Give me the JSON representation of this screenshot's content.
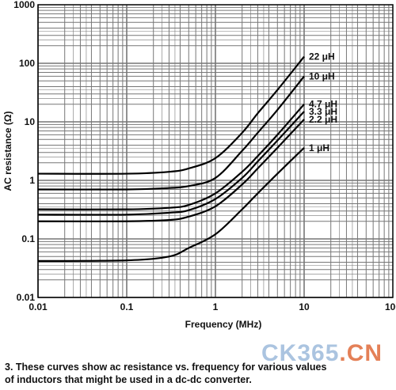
{
  "chart_data": {
    "type": "line",
    "xlabel": "Frequency (MHz)",
    "ylabel": "AC resistance (Ω)",
    "xscale": "log",
    "yscale": "log",
    "xlim": [
      0.01,
      100
    ],
    "ylim": [
      0.01,
      1000
    ],
    "xticks": [
      "0.01",
      "0.1",
      "1",
      "10",
      "100"
    ],
    "yticks": [
      "0.01",
      "0.1",
      "1",
      "10",
      "100",
      "1000"
    ],
    "grid": true,
    "series": [
      {
        "name": "22 μH",
        "x": [
          0.01,
          0.1,
          0.3,
          0.5,
          1,
          2,
          3,
          5,
          10
        ],
        "y": [
          1.3,
          1.3,
          1.4,
          1.6,
          2.4,
          6.5,
          14,
          35,
          130
        ]
      },
      {
        "name": "10 μH",
        "x": [
          0.01,
          0.1,
          0.3,
          0.5,
          1,
          2,
          3,
          5,
          10
        ],
        "y": [
          0.7,
          0.7,
          0.74,
          0.8,
          1.1,
          3.2,
          6.5,
          16,
          60
        ]
      },
      {
        "name": "4.7 μH",
        "x": [
          0.01,
          0.1,
          0.3,
          0.5,
          1,
          2,
          3,
          5,
          10
        ],
        "y": [
          0.32,
          0.32,
          0.34,
          0.38,
          0.6,
          1.4,
          2.6,
          6,
          20
        ]
      },
      {
        "name": "3.3 μH",
        "x": [
          0.01,
          0.1,
          0.3,
          0.5,
          1,
          2,
          3,
          5,
          10
        ],
        "y": [
          0.26,
          0.26,
          0.28,
          0.31,
          0.48,
          1.1,
          2.1,
          4.8,
          15
        ]
      },
      {
        "name": "2.2 μH",
        "x": [
          0.01,
          0.1,
          0.3,
          0.5,
          1,
          2,
          3,
          5,
          10
        ],
        "y": [
          0.2,
          0.2,
          0.21,
          0.24,
          0.36,
          0.85,
          1.6,
          3.6,
          11
        ]
      },
      {
        "name": "1 μH",
        "x": [
          0.01,
          0.1,
          0.3,
          0.5,
          1,
          2,
          3,
          5,
          10
        ],
        "y": [
          0.042,
          0.043,
          0.05,
          0.07,
          0.12,
          0.32,
          0.6,
          1.3,
          3.6
        ]
      }
    ]
  },
  "caption": {
    "line1": "3. These curves show ac resistance vs. frequency for various values",
    "line2": "of inductors that might be used in a dc-dc converter."
  },
  "watermark": {
    "main": "CK365",
    "accent": ".CN"
  },
  "colors": {
    "grid": "#777777",
    "curve": "#000000"
  }
}
